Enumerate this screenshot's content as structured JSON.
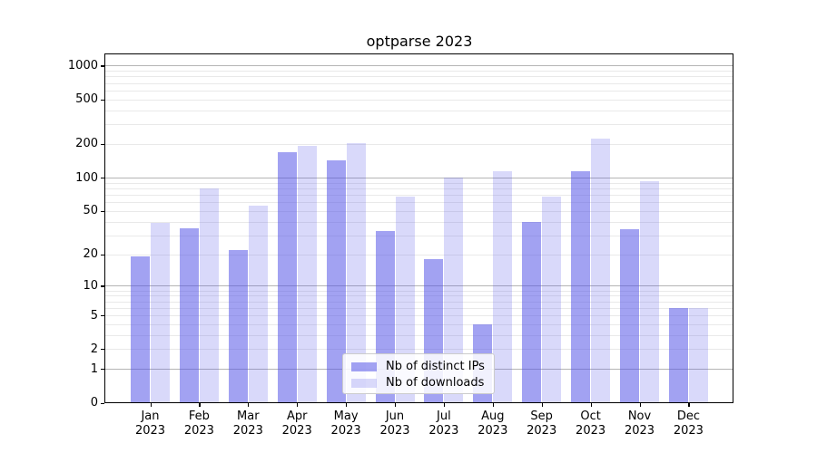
{
  "title": "optparse 2023",
  "chart_data": {
    "type": "bar",
    "title": "optparse 2023",
    "categories": [
      "Jan",
      "Feb",
      "Mar",
      "Apr",
      "May",
      "Jun",
      "Jul",
      "Aug",
      "Sep",
      "Oct",
      "Nov",
      "Dec"
    ],
    "year": "2023",
    "series": [
      {
        "name": "Nb of distinct IPs",
        "color": "rgba(80,80,230,0.53)",
        "values": [
          19,
          35,
          22,
          170,
          142,
          33,
          18,
          4,
          40,
          113,
          34,
          6
        ]
      },
      {
        "name": "Nb of downloads",
        "color": "rgba(80,80,230,0.22)",
        "values": [
          39,
          80,
          56,
          193,
          205,
          67,
          100,
          114,
          67,
          225,
          92,
          6
        ]
      }
    ],
    "yscale": "log10(value+1)",
    "yticks": [
      1000,
      500,
      200,
      100,
      50,
      20,
      10,
      5,
      2,
      1,
      0
    ],
    "ylim": [
      0,
      1290
    ],
    "grid": {
      "major": [
        1,
        10,
        100,
        1000
      ],
      "minor": [
        2,
        3,
        4,
        5,
        6,
        7,
        8,
        9,
        20,
        30,
        40,
        50,
        60,
        70,
        80,
        90,
        200,
        300,
        400,
        500,
        600,
        700,
        800,
        900
      ]
    },
    "legend_position": "inside lower-center"
  },
  "colors": {
    "grid_major": "#b4b4b4",
    "grid_minor": "#e9e9e9",
    "spine": "#000000"
  }
}
